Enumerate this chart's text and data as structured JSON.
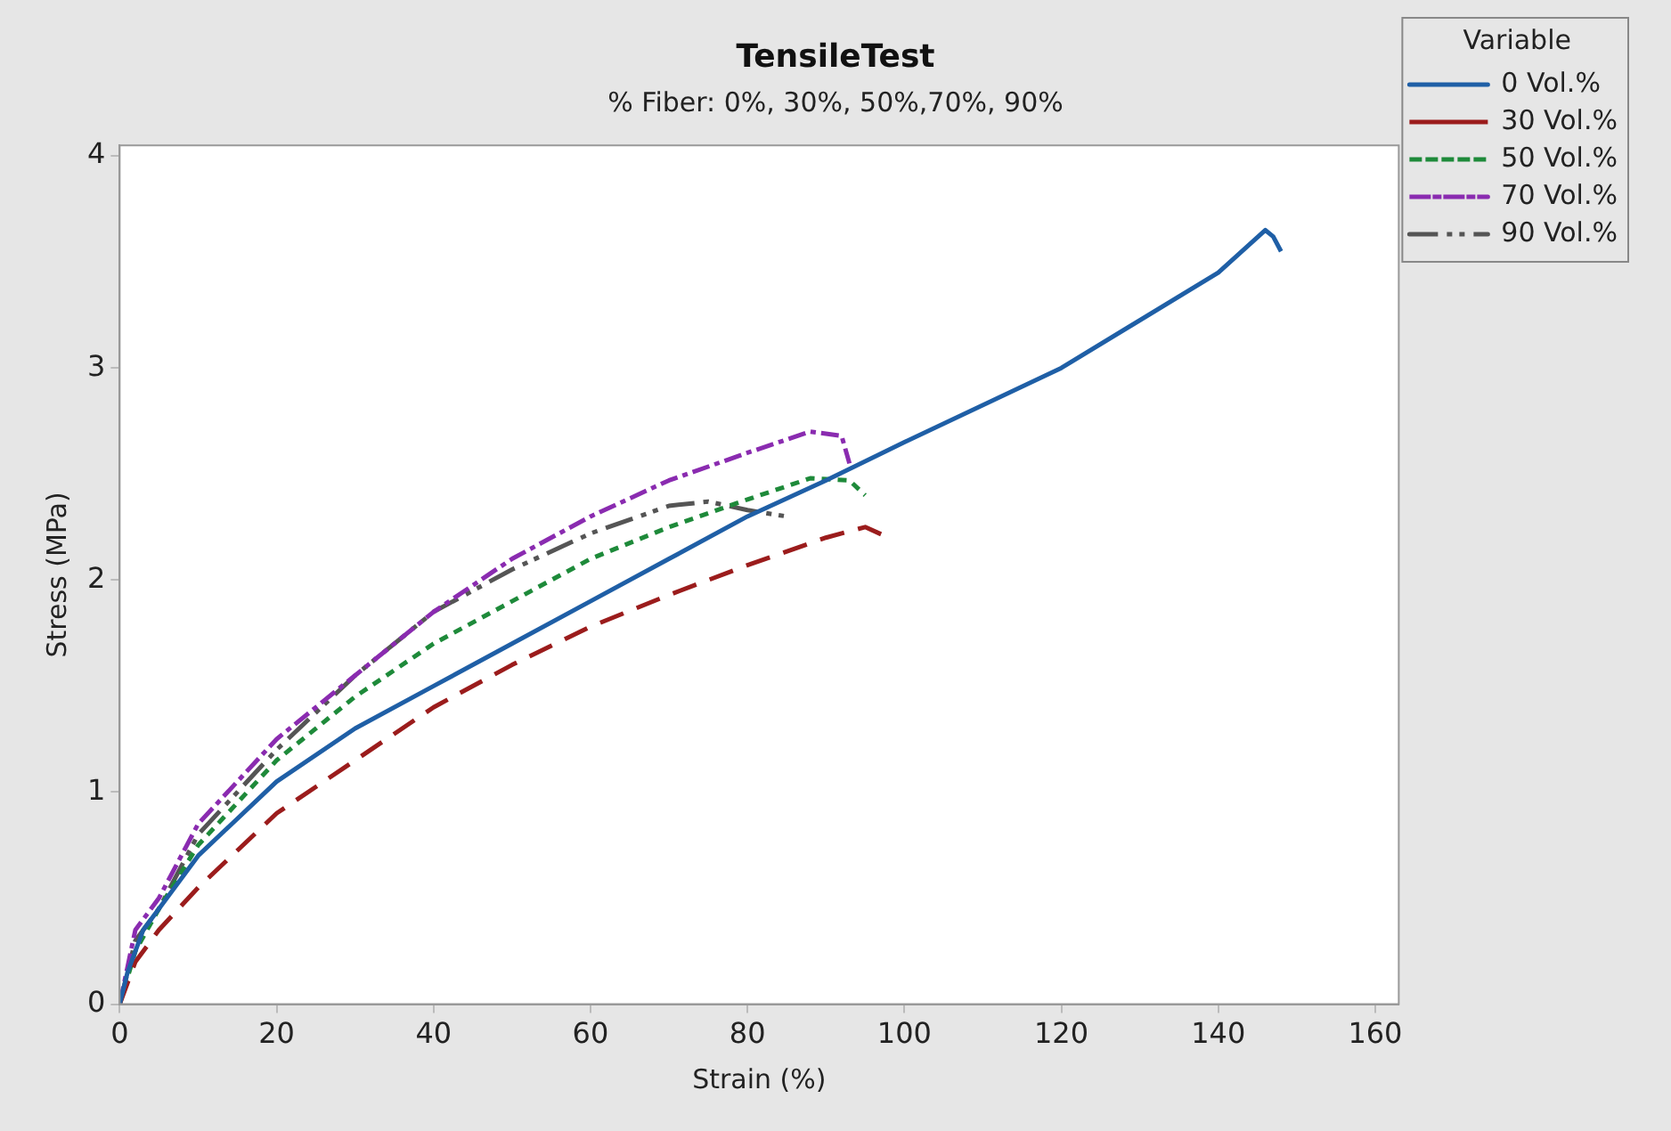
{
  "chart_data": {
    "type": "line",
    "title": "TensileTest",
    "subtitle": "% Fiber: 0%, 30%, 50%,70%, 90%",
    "xlabel": "Strain (%)",
    "ylabel": "Stress (MPa)",
    "legend_title": "Variable",
    "legend": "top right",
    "grid": false,
    "marker": "none",
    "xlim": [
      0,
      163
    ],
    "ylim": [
      0,
      4.05
    ],
    "xticks": [
      0,
      20,
      40,
      60,
      80,
      100,
      120,
      140,
      160
    ],
    "yticks": [
      0,
      1,
      2,
      3,
      4
    ],
    "series": [
      {
        "name": "0 Vol.%",
        "color": "#1f5fa6",
        "line_style": "solid",
        "x": [
          0,
          1,
          3,
          5,
          10,
          20,
          30,
          40,
          50,
          60,
          70,
          80,
          90,
          100,
          120,
          140,
          146,
          147,
          148
        ],
        "values": [
          0,
          0.15,
          0.35,
          0.45,
          0.7,
          1.05,
          1.3,
          1.5,
          1.7,
          1.9,
          2.1,
          2.3,
          2.47,
          2.65,
          3.0,
          3.45,
          3.65,
          3.62,
          3.55
        ]
      },
      {
        "name": "30 Vol.%",
        "color": "#9b1c1c",
        "line_style": "dashed",
        "x": [
          0,
          2,
          5,
          10,
          20,
          30,
          40,
          50,
          60,
          70,
          80,
          90,
          95,
          98
        ],
        "values": [
          0,
          0.2,
          0.35,
          0.55,
          0.9,
          1.15,
          1.4,
          1.6,
          1.78,
          1.93,
          2.07,
          2.2,
          2.25,
          2.2
        ]
      },
      {
        "name": "50 Vol.%",
        "color": "#1e8a3a",
        "line_style": "dotted",
        "x": [
          0,
          2,
          5,
          10,
          20,
          30,
          40,
          50,
          60,
          70,
          80,
          88,
          93,
          95
        ],
        "values": [
          0,
          0.25,
          0.45,
          0.75,
          1.15,
          1.45,
          1.7,
          1.9,
          2.1,
          2.25,
          2.38,
          2.48,
          2.47,
          2.4
        ]
      },
      {
        "name": "70 Vol.%",
        "color": "#8a2bb0",
        "line_style": "dashdot",
        "x": [
          0,
          2,
          5,
          10,
          20,
          30,
          40,
          50,
          60,
          70,
          80,
          88,
          92,
          93
        ],
        "values": [
          0,
          0.35,
          0.5,
          0.85,
          1.25,
          1.55,
          1.85,
          2.1,
          2.3,
          2.47,
          2.6,
          2.7,
          2.68,
          2.55
        ]
      },
      {
        "name": "90 Vol.%",
        "color": "#555555",
        "line_style": "dashdotdot",
        "x": [
          0,
          2,
          5,
          10,
          20,
          30,
          40,
          50,
          60,
          70,
          75,
          80,
          85
        ],
        "values": [
          0,
          0.3,
          0.45,
          0.8,
          1.2,
          1.55,
          1.85,
          2.05,
          2.22,
          2.35,
          2.37,
          2.33,
          2.3
        ]
      }
    ]
  }
}
